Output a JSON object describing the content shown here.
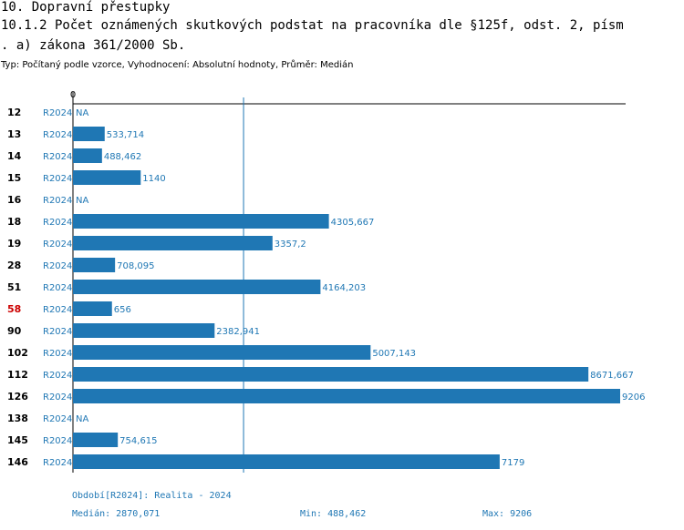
{
  "header": {
    "title_line1": "10. Dopravní přestupky",
    "title_line2": "10.1.2 Počet oznámených skutkových podstat na pracovníka dle §125f, odst. 2, písm",
    "title_line3": ". a) zákona 361/2000 Sb.",
    "subtitle": "Typ: Počítaný podle vzorce, Vyhodnocení: Absolutní hodnoty, Průměr: Medián"
  },
  "colors": {
    "bar": "#1f77b4",
    "highlight_label": "#cc0000",
    "axis": "#000000"
  },
  "chart_data": {
    "type": "bar",
    "orientation": "horizontal",
    "axis_zero_label": "0",
    "series_name": "R2024",
    "na_label": "NA",
    "median_value": 2870.071,
    "highlighted_category": "58",
    "rows": [
      {
        "category": "12",
        "value": null,
        "label": "NA"
      },
      {
        "category": "13",
        "value": 533.714,
        "label": "533,714"
      },
      {
        "category": "14",
        "value": 488.462,
        "label": "488,462"
      },
      {
        "category": "15",
        "value": 1140,
        "label": "1140"
      },
      {
        "category": "16",
        "value": null,
        "label": "NA"
      },
      {
        "category": "18",
        "value": 4305.667,
        "label": "4305,667"
      },
      {
        "category": "19",
        "value": 3357.2,
        "label": "3357,2"
      },
      {
        "category": "28",
        "value": 708.095,
        "label": "708,095"
      },
      {
        "category": "51",
        "value": 4164.203,
        "label": "4164,203"
      },
      {
        "category": "58",
        "value": 656,
        "label": "656"
      },
      {
        "category": "90",
        "value": 2382.941,
        "label": "2382,941"
      },
      {
        "category": "102",
        "value": 5007.143,
        "label": "5007,143"
      },
      {
        "category": "112",
        "value": 8671.667,
        "label": "8671,667"
      },
      {
        "category": "126",
        "value": 9206,
        "label": "9206"
      },
      {
        "category": "138",
        "value": null,
        "label": "NA"
      },
      {
        "category": "145",
        "value": 754.615,
        "label": "754,615"
      },
      {
        "category": "146",
        "value": 7179,
        "label": "7179"
      }
    ]
  },
  "footer": {
    "period": "Období[R2024]: Realita - 2024",
    "median": "Medián: 2870,071",
    "min": "Min: 488,462",
    "max": "Max: 9206"
  }
}
